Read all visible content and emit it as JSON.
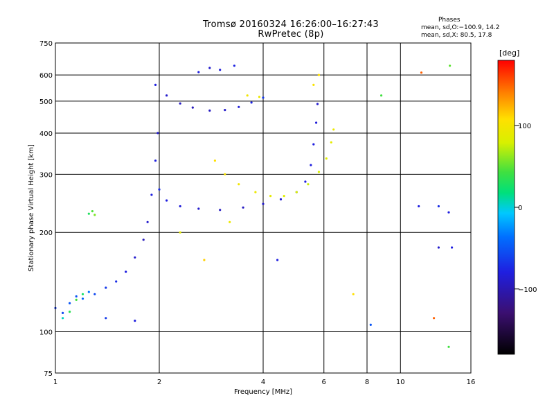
{
  "header": {
    "title": "Tromsø 20160324 16:26:00–16:27:43",
    "subtitle": "RwPretec (8p)"
  },
  "phases": {
    "heading": "Phases",
    "line_o": "mean, sd,O:−100.9, 14.2",
    "line_x": "mean, sd,X:  80.5, 17.8"
  },
  "colorbar": {
    "unit": "[deg]",
    "ticks": [
      "100",
      "0",
      "−100"
    ],
    "range": [
      -180,
      180
    ],
    "tick_values": [
      100,
      0,
      -100
    ]
  },
  "chart_data": {
    "type": "scatter",
    "title": "Tromsø 20160324 16:26:00–16:27:43",
    "subtitle": "RwPretec (8p)",
    "xlabel": "Frequency [MHz]",
    "ylabel": "Stationary phase Virtual Height [km]",
    "x_scale": "log",
    "y_scale": "log",
    "xlim": [
      1,
      16
    ],
    "ylim": [
      75,
      750
    ],
    "x_ticks": [
      1,
      2,
      4,
      6,
      8,
      10,
      16
    ],
    "x_tick_labels": [
      "1",
      "2",
      "4",
      "6",
      "8",
      "10",
      "16"
    ],
    "y_ticks": [
      75,
      100,
      200,
      300,
      400,
      500,
      600,
      750
    ],
    "y_tick_labels": [
      "75",
      "100",
      "200",
      "300",
      "400",
      "500",
      "600",
      "750"
    ],
    "grid": true,
    "color_value": "phase [deg]",
    "series": [
      {
        "points": [
          [
            1.0,
            118,
            -100
          ],
          [
            1.05,
            114,
            -95
          ],
          [
            1.1,
            122,
            -90
          ],
          [
            1.15,
            128,
            -90
          ],
          [
            1.2,
            126,
            -85
          ],
          [
            1.25,
            132,
            -80
          ],
          [
            1.3,
            130,
            -95
          ],
          [
            1.4,
            136,
            -100
          ],
          [
            1.5,
            142,
            -105
          ],
          [
            1.6,
            152,
            -110
          ],
          [
            1.7,
            168,
            -115
          ],
          [
            1.8,
            190,
            -120
          ],
          [
            1.85,
            215,
            -115
          ],
          [
            1.9,
            260,
            -110
          ],
          [
            1.95,
            330,
            -110
          ],
          [
            1.98,
            400,
            -115
          ]
        ]
      },
      {
        "points": [
          [
            1.1,
            115,
            20
          ],
          [
            1.15,
            125,
            30
          ],
          [
            1.2,
            130,
            10
          ],
          [
            1.05,
            110,
            -10
          ],
          [
            1.25,
            228,
            15
          ],
          [
            1.28,
            232,
            35
          ],
          [
            1.3,
            226,
            50
          ]
        ]
      },
      {
        "points": [
          [
            2.0,
            270,
            -105
          ],
          [
            2.1,
            250,
            -110
          ],
          [
            2.3,
            240,
            -112
          ],
          [
            2.6,
            236,
            -115
          ],
          [
            3.0,
            234,
            -118
          ],
          [
            3.5,
            238,
            -118
          ],
          [
            4.0,
            244,
            -116
          ],
          [
            4.5,
            252,
            -114
          ],
          [
            5.0,
            265,
            -112
          ],
          [
            5.3,
            285,
            -110
          ],
          [
            5.5,
            320,
            -110
          ],
          [
            5.6,
            370,
            -110
          ],
          [
            5.7,
            430,
            -112
          ],
          [
            5.75,
            490,
            -115
          ]
        ]
      },
      {
        "points": [
          [
            2.9,
            330,
            110
          ],
          [
            3.1,
            300,
            105
          ],
          [
            3.4,
            280,
            100
          ],
          [
            3.8,
            265,
            95
          ],
          [
            4.2,
            258,
            90
          ],
          [
            4.6,
            258,
            85
          ],
          [
            5.0,
            265,
            80
          ],
          [
            5.4,
            280,
            75
          ],
          [
            5.8,
            305,
            80
          ],
          [
            6.1,
            335,
            85
          ],
          [
            6.3,
            375,
            90
          ],
          [
            6.4,
            410,
            95
          ]
        ]
      },
      {
        "points": [
          [
            1.95,
            560,
            -110
          ],
          [
            2.1,
            520,
            -115
          ],
          [
            2.3,
            492,
            -118
          ],
          [
            2.5,
            478,
            -120
          ],
          [
            2.8,
            468,
            -118
          ],
          [
            3.1,
            470,
            -116
          ],
          [
            3.4,
            480,
            -112
          ],
          [
            3.7,
            495,
            -108
          ],
          [
            4.0,
            512,
            -100
          ]
        ]
      },
      {
        "points": [
          [
            2.6,
            612,
            -110
          ],
          [
            2.8,
            630,
            -115
          ],
          [
            3.0,
            622,
            -112
          ],
          [
            3.3,
            640,
            -108
          ],
          [
            3.6,
            520,
            100
          ],
          [
            3.9,
            515,
            95
          ],
          [
            5.6,
            560,
            105
          ],
          [
            5.8,
            600,
            110
          ]
        ]
      },
      {
        "points": [
          [
            1.4,
            110,
            -100
          ],
          [
            1.7,
            108,
            -110
          ],
          [
            2.3,
            200,
            90
          ],
          [
            2.7,
            165,
            115
          ],
          [
            3.2,
            215,
            95
          ],
          [
            4.4,
            165,
            -110
          ],
          [
            7.3,
            130,
            110
          ],
          [
            8.2,
            105,
            -90
          ],
          [
            8.8,
            520,
            30
          ],
          [
            11.5,
            610,
            150
          ],
          [
            12.5,
            110,
            150
          ],
          [
            13.8,
            90,
            30
          ],
          [
            13.9,
            640,
            40
          ],
          [
            11.3,
            240,
            -110
          ],
          [
            12.9,
            240,
            -105
          ],
          [
            13.8,
            230,
            -110
          ],
          [
            12.9,
            180,
            -115
          ],
          [
            14.1,
            180,
            -110
          ]
        ]
      }
    ]
  }
}
